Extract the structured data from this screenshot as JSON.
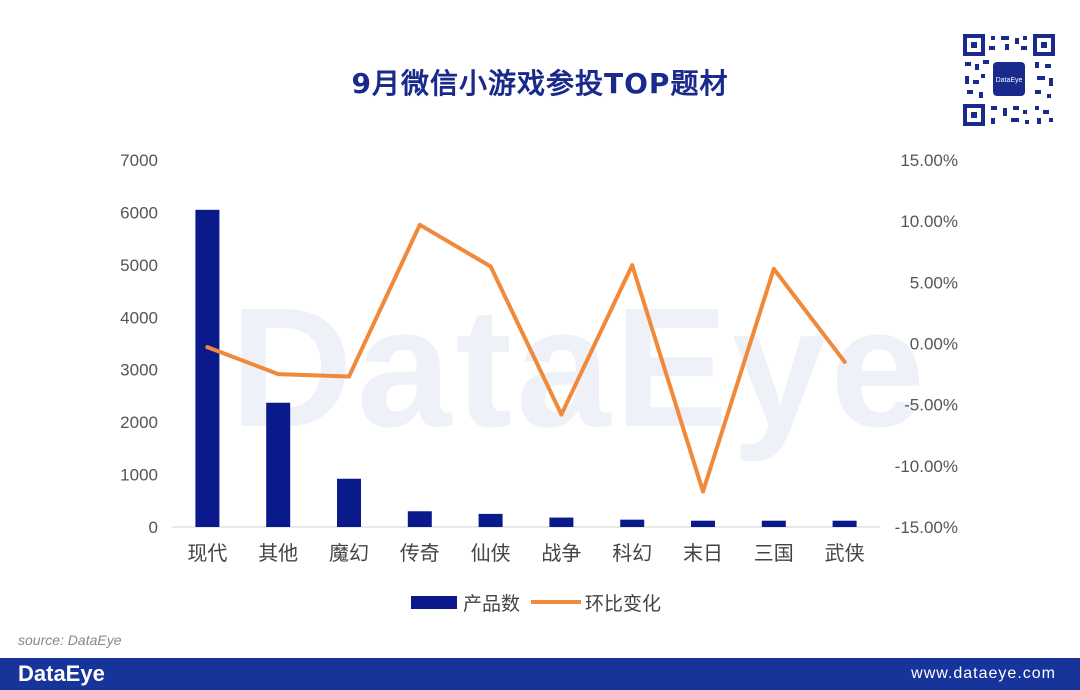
{
  "title": "9月微信小游戏参投TOP题材",
  "watermark": "DataEye",
  "source": "source: DataEye",
  "footer": {
    "brand": "DataEye",
    "url": "www.dataeye.com"
  },
  "qr": {
    "center_label": "DataEye"
  },
  "colors": {
    "bar": "#0a1a8a",
    "line": "#f08a3a",
    "title": "#1a2a8c",
    "footer": "#16349a"
  },
  "chart_data": {
    "type": "bar",
    "categories": [
      "现代",
      "其他",
      "魔幻",
      "传奇",
      "仙侠",
      "战争",
      "科幻",
      "末日",
      "三国",
      "武侠"
    ],
    "series": [
      {
        "name": "产品数",
        "type": "bar",
        "axis": "left",
        "values": [
          6050,
          2370,
          920,
          300,
          250,
          180,
          140,
          120,
          120,
          120
        ]
      },
      {
        "name": "环比变化",
        "type": "line",
        "axis": "right",
        "values": [
          -0.3,
          -2.5,
          -2.7,
          9.7,
          6.3,
          -5.8,
          6.4,
          -12.1,
          6.1,
          -1.5
        ]
      }
    ],
    "left_axis": {
      "ylim": [
        0,
        7000
      ],
      "ticks": [
        "0",
        "1000",
        "2000",
        "3000",
        "4000",
        "5000",
        "6000",
        "7000"
      ]
    },
    "right_axis": {
      "ylim": [
        -15,
        15
      ],
      "ticks": [
        "-15.00%",
        "-10.00%",
        "-5.00%",
        "0.00%",
        "5.00%",
        "10.00%",
        "15.00%"
      ]
    },
    "legend_position": "bottom",
    "grid": false
  }
}
